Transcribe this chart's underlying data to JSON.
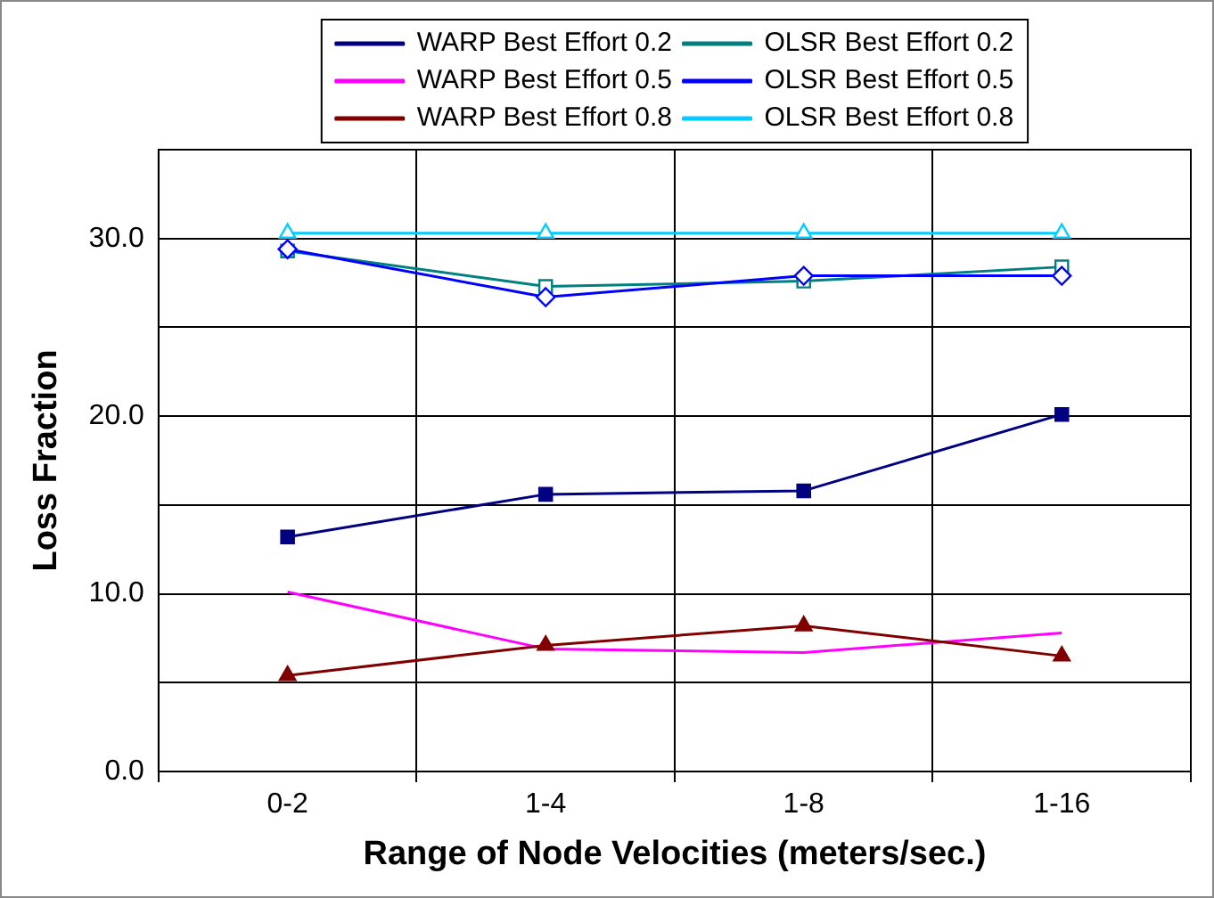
{
  "chart_data": {
    "type": "line",
    "xlabel": "Range of Node Velocities (meters/sec.)",
    "ylabel": "Loss Fraction",
    "categories": [
      "0-2",
      "1-4",
      "1-8",
      "1-16"
    ],
    "series": [
      {
        "name": "WARP Best Effort 0.2",
        "color": "#000080",
        "marker": "square",
        "values": [
          13.2,
          15.6,
          15.8,
          20.1
        ]
      },
      {
        "name": "WARP Best Effort 0.5",
        "color": "#ff00ff",
        "marker": "none",
        "values": [
          10.1,
          6.9,
          6.7,
          7.8
        ]
      },
      {
        "name": "WARP Best Effort 0.8",
        "color": "#800000",
        "marker": "triangle",
        "values": [
          5.4,
          7.1,
          8.2,
          6.5
        ]
      },
      {
        "name": "OLSR Best Effort 0.2",
        "color": "#008080",
        "marker": "square",
        "values": [
          29.3,
          27.3,
          27.6,
          28.4
        ]
      },
      {
        "name": "OLSR Best Effort 0.5",
        "color": "#0000ff",
        "marker": "diamond",
        "values": [
          29.4,
          26.7,
          27.9,
          27.9
        ]
      },
      {
        "name": "OLSR Best Effort 0.8",
        "color": "#00ccff",
        "marker": "triangle",
        "values": [
          30.3,
          30.3,
          30.3,
          30.3
        ]
      }
    ],
    "ylim": [
      0,
      35
    ],
    "yticks": [
      {
        "value": 0,
        "label": "0.0"
      },
      {
        "value": 5,
        "label": null
      },
      {
        "value": 10,
        "label": "10.0"
      },
      {
        "value": 15,
        "label": null
      },
      {
        "value": 20,
        "label": "20.0"
      },
      {
        "value": 25,
        "label": null
      },
      {
        "value": 30,
        "label": "30.0"
      },
      {
        "value": 35,
        "label": null
      }
    ],
    "grid": true,
    "legend": "top",
    "line_style": "solid"
  }
}
